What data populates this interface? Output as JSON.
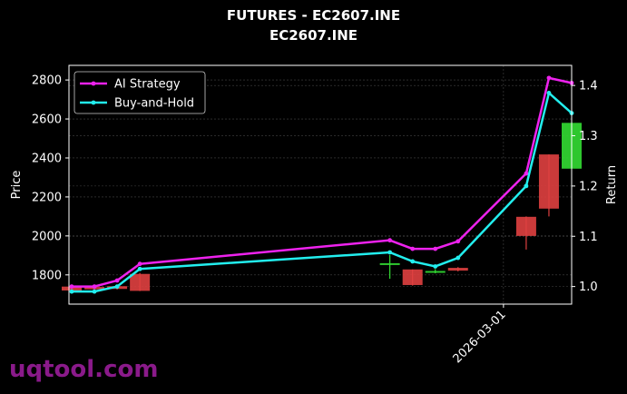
{
  "page": {
    "title": "FUTURES - EC2607.INE",
    "subtitle": "EC2607.INE",
    "watermark": "uqtool.com"
  },
  "chart_data": {
    "type": "candlestick+line",
    "title": "FUTURES - EC2607.INE",
    "subtitle": "EC2607.INE",
    "xlabel": "",
    "ylabel_left": "Price",
    "ylabel_right": "Return",
    "ylim_left": [
      1650,
      2875
    ],
    "ylim_right": [
      0.965,
      1.44
    ],
    "x_ticks": [
      {
        "label": "2026-03-01",
        "index": 19
      }
    ],
    "x_index_range": [
      0,
      22
    ],
    "left_ticks": [
      1800,
      2000,
      2200,
      2400,
      2600,
      2800
    ],
    "right_ticks": [
      1.0,
      1.1,
      1.2,
      1.3,
      1.4
    ],
    "grid": true,
    "legend_position": "top-left",
    "colors": {
      "up": "#33dd33",
      "down": "#e04040",
      "ai_strategy": "#ee22ee",
      "buy_hold": "#22eeee",
      "grid": "#444444",
      "axis": "#ffffff"
    },
    "candles": [
      {
        "i": 0,
        "open": 1740,
        "high": 1745,
        "low": 1715,
        "close": 1720
      },
      {
        "i": 1,
        "open": 1738,
        "high": 1742,
        "low": 1722,
        "close": 1726
      },
      {
        "i": 2,
        "open": 1742,
        "high": 1746,
        "low": 1725,
        "close": 1728
      },
      {
        "i": 3,
        "open": 1805,
        "high": 1810,
        "low": 1717,
        "close": 1718
      },
      {
        "i": 14,
        "open": 1852,
        "high": 1902,
        "low": 1780,
        "close": 1860
      },
      {
        "i": 15,
        "open": 1828,
        "high": 1828,
        "low": 1745,
        "close": 1748
      },
      {
        "i": 16,
        "open": 1812,
        "high": 1830,
        "low": 1808,
        "close": 1820
      },
      {
        "i": 17,
        "open": 1836,
        "high": 1840,
        "low": 1818,
        "close": 1822
      },
      {
        "i": 20,
        "open": 2098,
        "high": 2100,
        "low": 1930,
        "close": 2000
      },
      {
        "i": 21,
        "open": 2418,
        "high": 2418,
        "low": 2100,
        "close": 2140
      },
      {
        "i": 22,
        "open": 2345,
        "high": 2582,
        "low": 2345,
        "close": 2580
      }
    ],
    "series": [
      {
        "name": "AI Strategy",
        "points": [
          [
            0,
            1.0
          ],
          [
            1,
            1.0
          ],
          [
            2,
            1.012
          ],
          [
            3,
            1.045
          ],
          [
            14,
            1.092
          ],
          [
            15,
            1.075
          ],
          [
            16,
            1.075
          ],
          [
            17,
            1.09
          ],
          [
            20,
            1.225
          ],
          [
            21,
            1.415
          ],
          [
            22,
            1.405
          ]
        ]
      },
      {
        "name": "Buy-and-Hold",
        "points": [
          [
            0,
            0.99
          ],
          [
            1,
            0.99
          ],
          [
            2,
            1.0
          ],
          [
            3,
            1.035
          ],
          [
            14,
            1.068
          ],
          [
            15,
            1.05
          ],
          [
            16,
            1.04
          ],
          [
            17,
            1.057
          ],
          [
            20,
            1.2
          ],
          [
            21,
            1.385
          ],
          [
            22,
            1.345
          ]
        ]
      }
    ]
  }
}
